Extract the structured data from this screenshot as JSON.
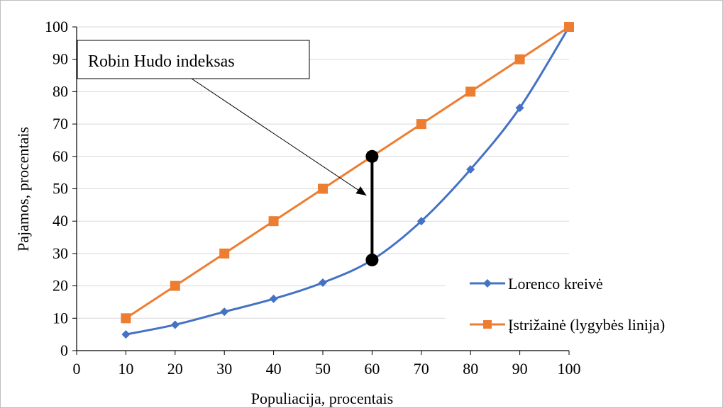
{
  "chart_data": {
    "type": "line",
    "x": [
      10,
      20,
      30,
      40,
      50,
      60,
      70,
      80,
      90,
      100
    ],
    "series": [
      {
        "name": "Lorenco kreivė",
        "values": [
          5,
          8,
          12,
          16,
          21,
          28,
          40,
          56,
          75,
          100
        ],
        "color": "#4472c4",
        "marker": "diamond",
        "smooth": true
      },
      {
        "name": "Įstrižainė (lygybės linija)",
        "values": [
          10,
          20,
          30,
          40,
          50,
          60,
          70,
          80,
          90,
          100
        ],
        "color": "#ed7d31",
        "marker": "square",
        "smooth": false
      }
    ],
    "xlabel": "Populiacija, procentais",
    "ylabel": "Pajamos, procentais",
    "xlim": [
      0,
      100
    ],
    "ylim": [
      0,
      100
    ],
    "xticks": [
      0,
      10,
      20,
      30,
      40,
      50,
      60,
      70,
      80,
      90,
      100
    ],
    "yticks": [
      0,
      10,
      20,
      30,
      40,
      50,
      60,
      70,
      80,
      90,
      100
    ],
    "grid": true,
    "legend_position": "bottom-right",
    "annotation": {
      "text": "Robin Hudo indeksas",
      "x": 60,
      "y_low": 28,
      "y_high": 60
    }
  }
}
